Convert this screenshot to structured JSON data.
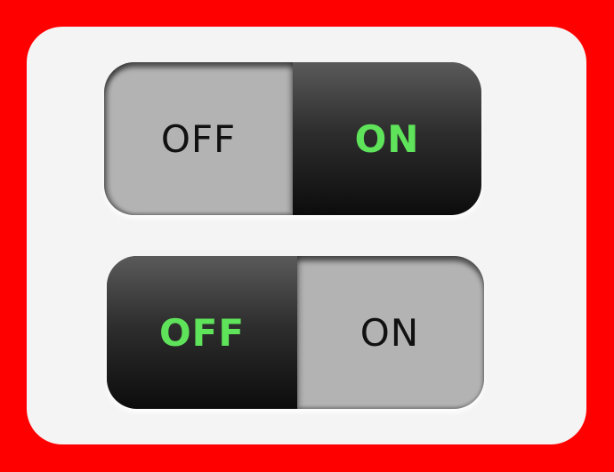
{
  "colors": {
    "background": "#ff0000",
    "panel": "#f4f4f4",
    "inactive_segment": "#b3b3b3",
    "active_segment": "#1a1a1a",
    "active_text": "#5fe35a",
    "inactive_text": "#111111"
  },
  "toggles": [
    {
      "off_label": "OFF",
      "on_label": "ON",
      "state": "on"
    },
    {
      "off_label": "OFF",
      "on_label": "ON",
      "state": "off"
    }
  ]
}
